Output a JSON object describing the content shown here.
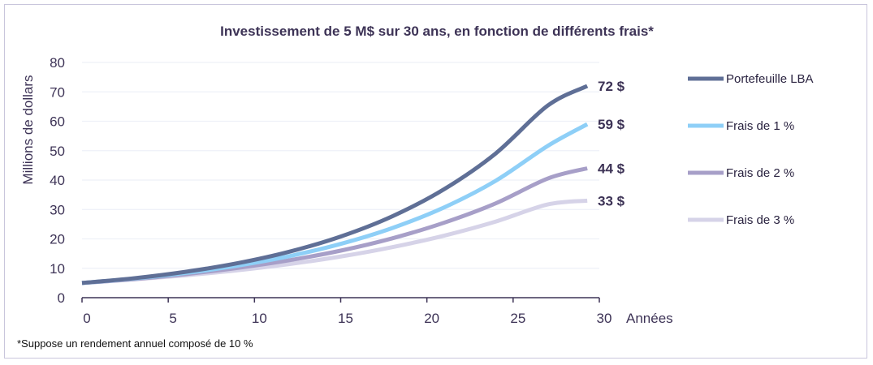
{
  "chart_data": {
    "type": "line",
    "title": "Investissement de 5 M$ sur 30 ans, en fonction de différents frais*",
    "xlabel": "Années",
    "ylabel": "Millions de dollars",
    "xlim": [
      0,
      30
    ],
    "ylim": [
      0,
      80
    ],
    "xticks": [
      0,
      5,
      10,
      15,
      20,
      25,
      30
    ],
    "yticks": [
      0,
      10,
      20,
      30,
      40,
      50,
      60,
      70,
      80
    ],
    "grid": true,
    "legend_position": "right",
    "footnote": "*Suppose un rendement annuel composé de 10 %",
    "x": [
      0,
      3,
      6,
      9,
      12,
      15,
      18,
      21,
      24,
      27,
      29.3
    ],
    "series": [
      {
        "name": "Portefeuille LBA",
        "color": "#5f6f96",
        "end_label": "72 $",
        "values": [
          5,
          6.6,
          8.8,
          11.7,
          15.6,
          20.8,
          27.7,
          36.9,
          49.1,
          65.3,
          72
        ]
      },
      {
        "name": "Frais de 1 %",
        "color": "#8ecff7",
        "end_label": "59 $",
        "values": [
          5,
          6.5,
          8.4,
          10.9,
          14.1,
          18.3,
          23.7,
          30.7,
          39.8,
          51.6,
          59
        ]
      },
      {
        "name": "Frais de 2 %",
        "color": "#a79fc8",
        "end_label": "44 $",
        "values": [
          5,
          6.3,
          8.0,
          10.1,
          12.7,
          16.0,
          20.2,
          25.5,
          32.1,
          40.5,
          44
        ]
      },
      {
        "name": "Frais de 3 %",
        "color": "#d6d3e8",
        "end_label": "33 $",
        "values": [
          5,
          6.2,
          7.6,
          9.3,
          11.4,
          14.0,
          17.2,
          21.1,
          25.9,
          31.7,
          33
        ]
      }
    ]
  }
}
